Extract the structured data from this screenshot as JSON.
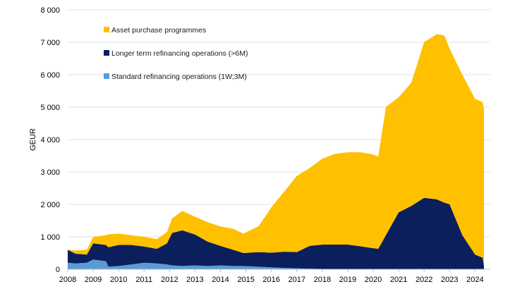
{
  "chart_data": {
    "type": "area",
    "stacked": true,
    "title": "",
    "xlabel": "",
    "ylabel": "GEUR",
    "ylim": [
      0,
      8000
    ],
    "xlim": [
      2008,
      2024.6
    ],
    "y_ticks": [
      0,
      1000,
      2000,
      3000,
      4000,
      5000,
      6000,
      7000,
      8000
    ],
    "y_tick_labels": [
      "0",
      "1 000",
      "2 000",
      "3 000",
      "4 000",
      "5 000",
      "6 000",
      "7 000",
      "8 000"
    ],
    "x_ticks": [
      2008,
      2009,
      2010,
      2011,
      2012,
      2013,
      2014,
      2015,
      2016,
      2017,
      2018,
      2019,
      2020,
      2021,
      2022,
      2023,
      2024
    ],
    "x_tick_labels": [
      "2008",
      "2009",
      "2010",
      "2011",
      "2012",
      "2013",
      "2014",
      "2015",
      "2016",
      "2017",
      "2018",
      "2019",
      "2020",
      "2021",
      "2022",
      "2023",
      "2024"
    ],
    "grid": "horizontal",
    "legend_position": "top-left",
    "x": [
      2008.0,
      2008.3,
      2008.75,
      2009.0,
      2009.5,
      2009.6,
      2010.0,
      2010.5,
      2011.0,
      2011.5,
      2011.9,
      2012.1,
      2012.5,
      2013.0,
      2013.5,
      2014.0,
      2014.5,
      2014.9,
      2015.5,
      2016.0,
      2016.5,
      2017.0,
      2017.5,
      2018.0,
      2018.5,
      2019.0,
      2019.5,
      2019.9,
      2020.2,
      2020.5,
      2021.0,
      2021.5,
      2022.0,
      2022.5,
      2022.8,
      2023.0,
      2023.5,
      2024.0,
      2024.3,
      2024.35
    ],
    "series": [
      {
        "name": "Standard refinancing operations (1W;3M)",
        "color": "#5b9bd5",
        "values": [
          200,
          180,
          200,
          300,
          250,
          80,
          100,
          150,
          200,
          180,
          150,
          120,
          100,
          120,
          100,
          120,
          100,
          100,
          80,
          60,
          40,
          30,
          20,
          10,
          10,
          10,
          10,
          10,
          10,
          5,
          5,
          5,
          5,
          5,
          5,
          5,
          5,
          5,
          5,
          5
        ]
      },
      {
        "name": "Longer term refinancing operations (>6M)",
        "color": "#0a1f5c",
        "values": [
          400,
          300,
          250,
          500,
          500,
          600,
          650,
          600,
          500,
          450,
          650,
          1000,
          1100,
          950,
          750,
          600,
          500,
          400,
          450,
          450,
          500,
          500,
          700,
          750,
          750,
          750,
          700,
          650,
          620,
          1050,
          1750,
          1950,
          2200,
          2150,
          2050,
          2000,
          1050,
          450,
          350,
          100
        ]
      },
      {
        "name": "Asset purchase programmes",
        "color": "#ffc000",
        "values": [
          0,
          100,
          150,
          200,
          300,
          400,
          350,
          300,
          300,
          300,
          350,
          450,
          600,
          550,
          600,
          600,
          650,
          600,
          800,
          1400,
          1850,
          2350,
          2400,
          2650,
          2800,
          2850,
          2900,
          2900,
          2850,
          3950,
          3550,
          3800,
          4800,
          5100,
          5150,
          4800,
          4950,
          4800,
          4800,
          4850
        ]
      }
    ],
    "legend_entries": [
      "Asset purchase programmes",
      "Longer term refinancing operations (>6M)",
      "Standard refinancing operations (1W;3M)"
    ]
  }
}
